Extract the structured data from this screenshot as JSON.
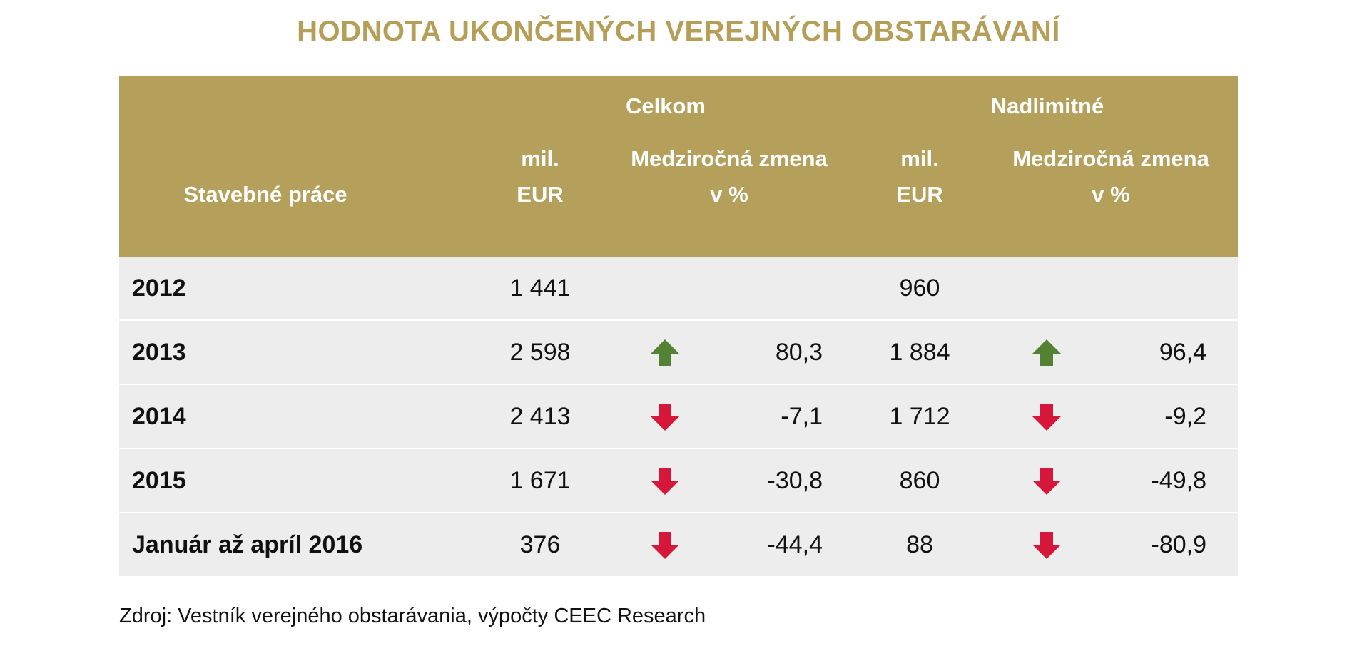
{
  "title": "HODNOTA UKONČENÝCH VEREJNÝCH OBSTARÁVANÍ",
  "header": {
    "row_label": "Stavebné práce",
    "group1": "Celkom",
    "group2": "Nadlimitné",
    "unit_line1": "mil.",
    "unit_line2": "EUR",
    "change_line1": "Medziročná zmena",
    "change_line2": "v %"
  },
  "colors": {
    "header_bg": "#b5a05b",
    "up": "#548235",
    "down": "#d7173a",
    "row_bg": "#ededed"
  },
  "rows": [
    {
      "label": "2012",
      "celkom_eur": "1 441",
      "celkom_dir": "",
      "celkom_pct": "",
      "nad_eur": "960",
      "nad_dir": "",
      "nad_pct": ""
    },
    {
      "label": "2013",
      "celkom_eur": "2 598",
      "celkom_dir": "up",
      "celkom_pct": "80,3",
      "nad_eur": "1 884",
      "nad_dir": "up",
      "nad_pct": "96,4"
    },
    {
      "label": "2014",
      "celkom_eur": "2 413",
      "celkom_dir": "down",
      "celkom_pct": "-7,1",
      "nad_eur": "1 712",
      "nad_dir": "down",
      "nad_pct": "-9,2"
    },
    {
      "label": "2015",
      "celkom_eur": "1 671",
      "celkom_dir": "down",
      "celkom_pct": "-30,8",
      "nad_eur": "860",
      "nad_dir": "down",
      "nad_pct": "-49,8"
    },
    {
      "label": "Január až apríl 2016",
      "celkom_eur": "376",
      "celkom_dir": "down",
      "celkom_pct": "-44,4",
      "nad_eur": "88",
      "nad_dir": "down",
      "nad_pct": "-80,9"
    }
  ],
  "source": "Zdroj: Vestník verejného obstarávania, výpočty CEEC Research"
}
